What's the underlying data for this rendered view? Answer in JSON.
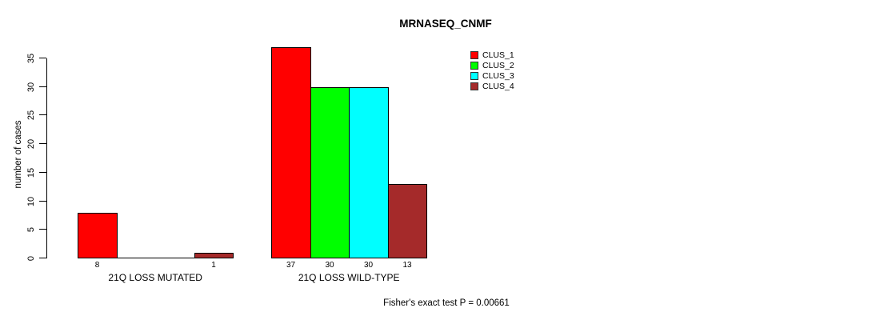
{
  "chart_data": {
    "type": "bar",
    "title": "MRNASEQ_CNMF",
    "ylabel": "number of cases",
    "xlabel": "",
    "categories": [
      "21Q LOSS MUTATED",
      "21Q LOSS WILD-TYPE"
    ],
    "series": [
      {
        "name": "CLUS_1",
        "color": "#FF0000",
        "values": [
          8,
          37
        ]
      },
      {
        "name": "CLUS_2",
        "color": "#00FF00",
        "values": [
          0,
          30
        ]
      },
      {
        "name": "CLUS_3",
        "color": "#00FFFF",
        "values": [
          0,
          30
        ]
      },
      {
        "name": "CLUS_4",
        "color": "#A52A2A",
        "values": [
          1,
          13
        ]
      }
    ],
    "bar_value_labels": [
      [
        "8",
        "",
        "",
        "1"
      ],
      [
        "37",
        "30",
        "30",
        "13"
      ]
    ],
    "ylim": [
      0,
      35
    ],
    "yticks": [
      0,
      5,
      10,
      15,
      20,
      25,
      30,
      35
    ],
    "grid": false,
    "legend_position": "top-right",
    "annotation": "Fisher's exact test P = 0.00661",
    "background_color": "#FFFFFF",
    "bar_border_color": "#000000",
    "text_color": "#000000"
  }
}
